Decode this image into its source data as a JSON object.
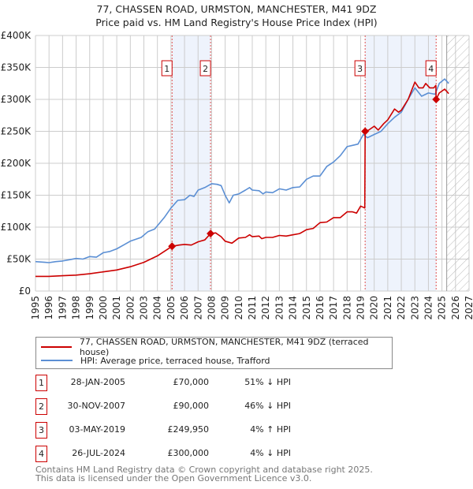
{
  "title": "77, CHASSEN ROAD, URMSTON, MANCHESTER, M41 9DZ",
  "subtitle": "Price paid vs. HM Land Registry's House Price Index (HPI)",
  "colors": {
    "price": "#cc0000",
    "hpi": "#5b8fd4",
    "shade": "#eef3fc",
    "grid": "#cccccc"
  },
  "chart_data": {
    "type": "line",
    "xlim": [
      1995,
      2027
    ],
    "ylim": [
      0,
      400000
    ],
    "x_ticks": [
      "1995",
      "1996",
      "1997",
      "1998",
      "1999",
      "2000",
      "2001",
      "2002",
      "2003",
      "2004",
      "2005",
      "2006",
      "2007",
      "2008",
      "2009",
      "2010",
      "2011",
      "2012",
      "2013",
      "2014",
      "2015",
      "2016",
      "2017",
      "2018",
      "2019",
      "2020",
      "2021",
      "2022",
      "2023",
      "2024",
      "2025",
      "2026",
      "2027"
    ],
    "y_ticks": [
      {
        "v": 0,
        "label": "£0"
      },
      {
        "v": 50000,
        "label": "£50K"
      },
      {
        "v": 100000,
        "label": "£100K"
      },
      {
        "v": 150000,
        "label": "£150K"
      },
      {
        "v": 200000,
        "label": "£200K"
      },
      {
        "v": 250000,
        "label": "£250K"
      },
      {
        "v": 300000,
        "label": "£300K"
      },
      {
        "v": 350000,
        "label": "£350K"
      },
      {
        "v": 400000,
        "label": "£400K"
      }
    ],
    "grid": true,
    "shaded_ranges": [
      [
        2005.08,
        2007.92
      ],
      [
        2019.33,
        2024.57
      ]
    ],
    "forecast_hatch_from": 2025.35,
    "series": [
      {
        "name": "77, CHASSEN ROAD, URMSTON, MANCHESTER, M41 9DZ (terraced house)",
        "color": "#cc0000",
        "points": [
          [
            1995,
            23000
          ],
          [
            1996,
            23000
          ],
          [
            1997,
            24000
          ],
          [
            1998,
            25000
          ],
          [
            1999,
            27000
          ],
          [
            2000,
            30000
          ],
          [
            2001,
            33000
          ],
          [
            2002,
            38000
          ],
          [
            2003,
            45000
          ],
          [
            2004,
            55000
          ],
          [
            2005.08,
            70000
          ],
          [
            2005.6,
            72000
          ],
          [
            2006,
            73000
          ],
          [
            2006.5,
            72000
          ],
          [
            2007,
            77000
          ],
          [
            2007.5,
            80000
          ],
          [
            2007.92,
            90000
          ],
          [
            2008.3,
            91000
          ],
          [
            2008.7,
            85000
          ],
          [
            2009,
            78000
          ],
          [
            2009.5,
            75000
          ],
          [
            2010,
            83000
          ],
          [
            2010.5,
            84000
          ],
          [
            2010.8,
            88000
          ],
          [
            2011,
            85000
          ],
          [
            2011.5,
            86000
          ],
          [
            2011.7,
            82000
          ],
          [
            2012,
            84000
          ],
          [
            2012.5,
            84000
          ],
          [
            2013,
            87000
          ],
          [
            2013.5,
            86000
          ],
          [
            2014,
            88000
          ],
          [
            2014.5,
            90000
          ],
          [
            2015,
            96000
          ],
          [
            2015.5,
            98000
          ],
          [
            2016,
            107000
          ],
          [
            2016.5,
            108000
          ],
          [
            2017,
            115000
          ],
          [
            2017.5,
            115000
          ],
          [
            2018,
            124000
          ],
          [
            2018.4,
            124000
          ],
          [
            2018.7,
            122000
          ],
          [
            2019,
            133000
          ],
          [
            2019.3,
            130000
          ],
          [
            2019.33,
            249950
          ],
          [
            2019.6,
            252000
          ],
          [
            2020,
            258000
          ],
          [
            2020.3,
            252000
          ],
          [
            2020.7,
            262000
          ],
          [
            2021,
            268000
          ],
          [
            2021.5,
            285000
          ],
          [
            2021.8,
            280000
          ],
          [
            2022,
            283000
          ],
          [
            2022.5,
            300000
          ],
          [
            2023,
            327000
          ],
          [
            2023.3,
            318000
          ],
          [
            2023.6,
            318000
          ],
          [
            2023.8,
            325000
          ],
          [
            2024.1,
            318000
          ],
          [
            2024.4,
            318000
          ],
          [
            2024.55,
            322000
          ],
          [
            2024.57,
            300000
          ],
          [
            2024.8,
            310000
          ],
          [
            2025.2,
            316000
          ],
          [
            2025.5,
            309000
          ]
        ]
      },
      {
        "name": "HPI: Average price, terraced house, Trafford",
        "color": "#5b8fd4",
        "points": [
          [
            1995,
            46000
          ],
          [
            1995.7,
            45000
          ],
          [
            1996,
            44500
          ],
          [
            1996.5,
            46000
          ],
          [
            1997,
            47000
          ],
          [
            1997.5,
            49000
          ],
          [
            1998,
            51000
          ],
          [
            1998.5,
            50000
          ],
          [
            1999,
            54000
          ],
          [
            1999.5,
            53000
          ],
          [
            2000,
            60000
          ],
          [
            2000.5,
            62000
          ],
          [
            2001,
            66000
          ],
          [
            2001.5,
            72000
          ],
          [
            2002,
            78000
          ],
          [
            2002.8,
            84000
          ],
          [
            2003.3,
            93000
          ],
          [
            2003.8,
            97000
          ],
          [
            2004.5,
            115000
          ],
          [
            2005,
            130000
          ],
          [
            2005.5,
            142000
          ],
          [
            2006,
            143000
          ],
          [
            2006.4,
            150000
          ],
          [
            2006.7,
            148000
          ],
          [
            2007,
            158000
          ],
          [
            2007.5,
            162000
          ],
          [
            2008,
            168000
          ],
          [
            2008.4,
            167000
          ],
          [
            2008.7,
            165000
          ],
          [
            2009,
            150000
          ],
          [
            2009.3,
            138000
          ],
          [
            2009.6,
            150000
          ],
          [
            2010,
            152000
          ],
          [
            2010.5,
            158000
          ],
          [
            2010.8,
            162000
          ],
          [
            2011,
            158000
          ],
          [
            2011.5,
            157000
          ],
          [
            2011.8,
            152000
          ],
          [
            2012,
            155000
          ],
          [
            2012.5,
            154000
          ],
          [
            2013,
            160000
          ],
          [
            2013.5,
            158000
          ],
          [
            2014,
            162000
          ],
          [
            2014.5,
            163000
          ],
          [
            2015,
            175000
          ],
          [
            2015.5,
            180000
          ],
          [
            2016,
            180000
          ],
          [
            2016.5,
            195000
          ],
          [
            2017,
            202000
          ],
          [
            2017.5,
            212000
          ],
          [
            2018,
            226000
          ],
          [
            2018.4,
            228000
          ],
          [
            2018.8,
            230000
          ],
          [
            2019.2,
            245000
          ],
          [
            2019.5,
            240000
          ],
          [
            2020,
            245000
          ],
          [
            2020.5,
            250000
          ],
          [
            2021,
            262000
          ],
          [
            2021.5,
            272000
          ],
          [
            2022,
            280000
          ],
          [
            2022.5,
            300000
          ],
          [
            2023,
            318000
          ],
          [
            2023.5,
            305000
          ],
          [
            2024,
            310000
          ],
          [
            2024.5,
            308000
          ],
          [
            2024.8,
            325000
          ],
          [
            2025.2,
            332000
          ],
          [
            2025.5,
            325000
          ]
        ]
      }
    ],
    "sales": [
      {
        "n": "1",
        "x": 2005.08,
        "y": 70000
      },
      {
        "n": "2",
        "x": 2007.92,
        "y": 90000
      },
      {
        "n": "3",
        "x": 2019.33,
        "y": 249950
      },
      {
        "n": "4",
        "x": 2024.57,
        "y": 300000
      }
    ]
  },
  "legend": {
    "price_label": "77, CHASSEN ROAD, URMSTON, MANCHESTER, M41 9DZ (terraced house)",
    "hpi_label": "HPI: Average price, terraced house, Trafford"
  },
  "transactions": [
    {
      "n": "1",
      "date": "28-JAN-2005",
      "price": "£70,000",
      "hpi": "51% ↓ HPI"
    },
    {
      "n": "2",
      "date": "30-NOV-2007",
      "price": "£90,000",
      "hpi": "46% ↓ HPI"
    },
    {
      "n": "3",
      "date": "03-MAY-2019",
      "price": "£249,950",
      "hpi": "4% ↑ HPI"
    },
    {
      "n": "4",
      "date": "26-JUL-2024",
      "price": "£300,000",
      "hpi": "4% ↓ HPI"
    }
  ],
  "footer": {
    "line1": "Contains HM Land Registry data © Crown copyright and database right 2025.",
    "line2": "This data is licensed under the Open Government Licence v3.0."
  }
}
